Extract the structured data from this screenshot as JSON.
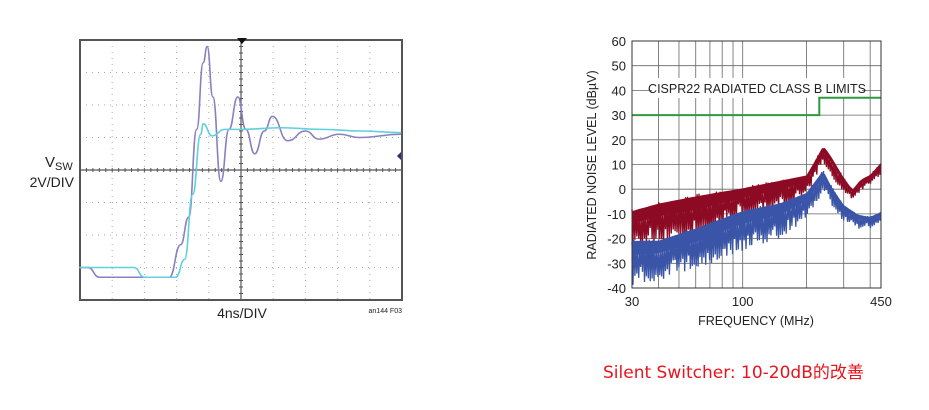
{
  "chart_data": [
    {
      "type": "line",
      "ylabel_main": "V",
      "ylabel_sub": "SW",
      "y_scale_label": "2V/DIV",
      "x_scale_label": "4ns/DIV",
      "figure_id": "an144 F03",
      "xlim": [
        -20,
        20
      ],
      "ylim": [
        -8,
        8
      ],
      "x_divisions": 10,
      "y_divisions": 8,
      "grid": true,
      "series": [
        {
          "color": "#8880c0",
          "x": [
            -20.1,
            -19,
            -17.6,
            -8.9,
            -7.5,
            -6.5,
            -5.5,
            -4.7,
            -4.2,
            -3.5,
            -2.5,
            -1.5,
            -0.4,
            0.6,
            1.7,
            2.9,
            3.9,
            5.8,
            8.0,
            9.7,
            12.2,
            14.7,
            19.9
          ],
          "y": [
            -6.0,
            -6.0,
            -6.6,
            -6.6,
            -4.6,
            -2.9,
            2.5,
            6.6,
            7.6,
            4.5,
            -0.7,
            2.5,
            4.5,
            2.5,
            1.0,
            2.4,
            3.3,
            1.8,
            2.4,
            1.9,
            2.2,
            2.0,
            2.2
          ]
        },
        {
          "color": "#5fd0dc",
          "x": [
            -20.1,
            -13.3,
            -12,
            -8.1,
            -7.0,
            -6.0,
            -5.0,
            -4.7,
            -3.6,
            -2.0,
            0,
            5,
            10,
            15,
            19.9
          ],
          "y": [
            -6.0,
            -6.0,
            -6.6,
            -6.6,
            -5.5,
            -1.5,
            2.2,
            2.84,
            2.1,
            2.5,
            2.5,
            2.6,
            2.5,
            2.4,
            2.3
          ]
        }
      ]
    },
    {
      "type": "area",
      "xlabel": "FREQUENCY (MHz)",
      "ylabel": "RADIATED NOISE LEVEL (dBµV)",
      "x_scale": "log",
      "xlim": [
        30,
        450
      ],
      "ylim": [
        -40,
        60
      ],
      "x_ticks": [
        "30",
        "100",
        "450"
      ],
      "y_ticks": [
        "60",
        "50",
        "40",
        "30",
        "20",
        "10",
        "0",
        "-10",
        "-20",
        "-30",
        "-40"
      ],
      "grid": true,
      "annotation": "CISPR22 RADIATED CLASS B LIMITS",
      "limit_line": {
        "color": "#2e9a3e",
        "x": [
          30,
          230,
          230,
          450
        ],
        "y": [
          30,
          30,
          37,
          37
        ]
      },
      "series": [
        {
          "color": "#8c0a24",
          "x_upper": [
            30,
            40,
            60,
            100,
            150,
            200,
            220,
            240,
            260,
            300,
            330,
            360,
            400,
            450
          ],
          "upper": [
            -8,
            -5,
            -2,
            1,
            4,
            6,
            12,
            18,
            14,
            5,
            0,
            4,
            6,
            11
          ],
          "x_lower": [
            30,
            40,
            60,
            100,
            150,
            200,
            240,
            260,
            300,
            330,
            360,
            400,
            450
          ],
          "lower": [
            -25,
            -22,
            -20,
            -12,
            -8,
            -3,
            10,
            6,
            -2,
            -4,
            -1,
            2,
            6
          ]
        },
        {
          "color": "#3a55a8",
          "x_upper": [
            30,
            40,
            60,
            100,
            150,
            200,
            240,
            260,
            300,
            350,
            400,
            450
          ],
          "upper": [
            -20,
            -20,
            -15,
            -8,
            -5,
            -1,
            8,
            2,
            -6,
            -10,
            -11,
            -9
          ],
          "x_lower": [
            30,
            40,
            60,
            100,
            150,
            200,
            240,
            260,
            300,
            350,
            400,
            450
          ],
          "lower": [
            -39,
            -37,
            -33,
            -25,
            -20,
            -12,
            -1,
            -6,
            -14,
            -16,
            -16,
            -13
          ]
        }
      ]
    }
  ],
  "caption": "Silent Switcher: 10-20dB的改善"
}
